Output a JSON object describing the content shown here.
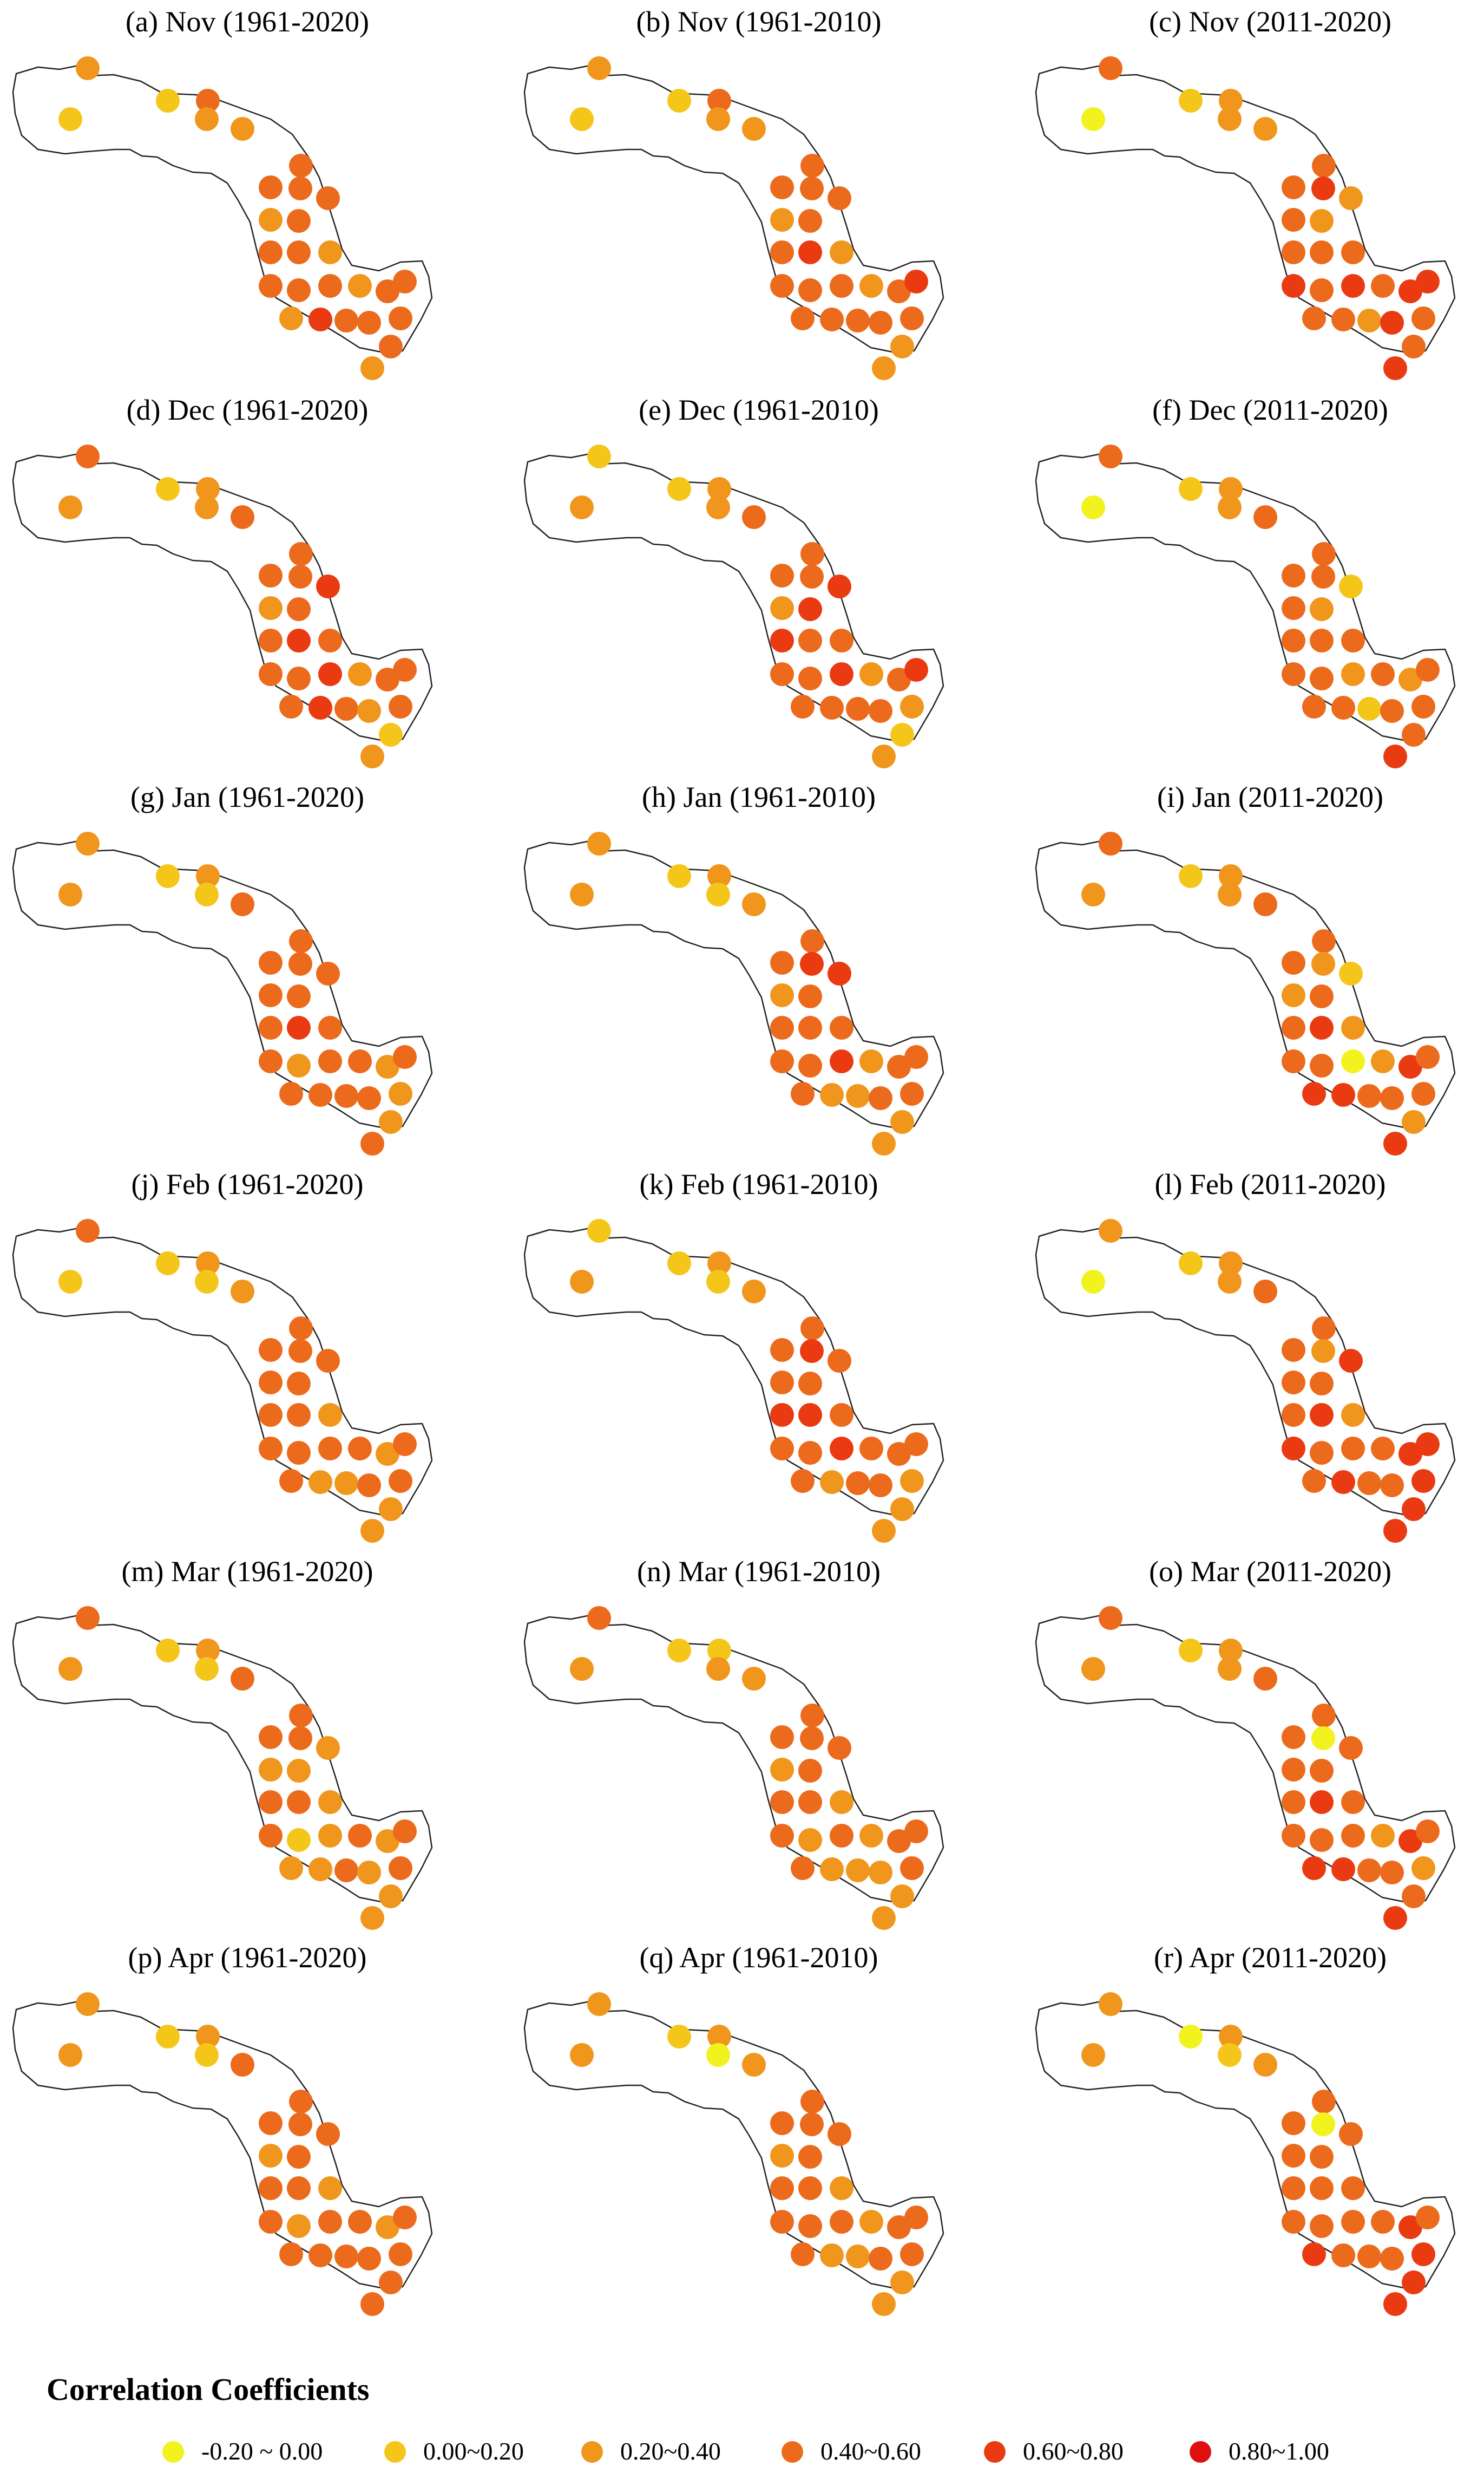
{
  "panels": [
    {
      "title": "(a) Nov (1961-2020)",
      "classes": [
        1,
        2,
        1,
        3,
        2,
        2,
        3,
        3,
        3,
        3,
        2,
        3,
        3,
        3,
        2,
        3,
        3,
        3,
        2,
        3,
        3,
        2,
        4,
        3,
        3,
        3,
        3,
        2
      ]
    },
    {
      "title": "(b) Nov (1961-2010)",
      "classes": [
        1,
        2,
        1,
        3,
        2,
        2,
        3,
        3,
        3,
        3,
        2,
        3,
        4,
        3,
        2,
        3,
        3,
        3,
        2,
        3,
        4,
        3,
        3,
        3,
        3,
        3,
        2,
        2
      ]
    },
    {
      "title": "(c) Nov (2011-2020)",
      "classes": [
        0,
        3,
        1,
        2,
        2,
        2,
        3,
        3,
        4,
        2,
        3,
        2,
        3,
        3,
        3,
        4,
        3,
        4,
        3,
        4,
        4,
        3,
        3,
        2,
        3,
        4,
        3,
        4
      ]
    },
    {
      "title": "(d) Dec (1961-2020)",
      "classes": [
        2,
        3,
        1,
        2,
        2,
        3,
        3,
        3,
        3,
        4,
        2,
        3,
        4,
        3,
        3,
        4,
        3,
        3,
        2,
        3,
        3,
        3,
        4,
        3,
        3,
        2,
        1,
        2
      ]
    },
    {
      "title": "(e) Dec (1961-2010)",
      "classes": [
        2,
        1,
        1,
        2,
        2,
        3,
        3,
        3,
        3,
        4,
        2,
        4,
        3,
        4,
        3,
        4,
        3,
        3,
        2,
        3,
        4,
        3,
        3,
        3,
        2,
        3,
        1,
        2
      ]
    },
    {
      "title": "(f) Dec (2011-2020)",
      "classes": [
        0,
        3,
        1,
        2,
        2,
        3,
        3,
        3,
        3,
        1,
        3,
        2,
        3,
        3,
        3,
        2,
        3,
        3,
        3,
        2,
        3,
        3,
        3,
        1,
        3,
        3,
        3,
        4
      ]
    },
    {
      "title": "(g) Jan (1961-2020)",
      "classes": [
        2,
        2,
        1,
        2,
        1,
        3,
        3,
        3,
        3,
        3,
        3,
        3,
        4,
        3,
        3,
        3,
        2,
        3,
        3,
        2,
        3,
        3,
        3,
        3,
        2,
        3,
        2,
        3
      ]
    },
    {
      "title": "(h) Jan (1961-2010)",
      "classes": [
        2,
        2,
        1,
        2,
        1,
        2,
        3,
        3,
        4,
        4,
        2,
        3,
        3,
        3,
        3,
        4,
        3,
        3,
        2,
        3,
        3,
        3,
        2,
        2,
        3,
        3,
        2,
        2
      ]
    },
    {
      "title": "(i) Jan (2011-2020)",
      "classes": [
        2,
        3,
        1,
        2,
        2,
        3,
        3,
        3,
        2,
        1,
        2,
        3,
        4,
        3,
        2,
        0,
        3,
        3,
        2,
        4,
        3,
        4,
        4,
        3,
        3,
        3,
        2,
        4
      ]
    },
    {
      "title": "(j) Feb (1961-2020)",
      "classes": [
        1,
        3,
        1,
        2,
        1,
        2,
        3,
        3,
        3,
        3,
        3,
        3,
        3,
        3,
        2,
        3,
        3,
        3,
        3,
        2,
        3,
        3,
        2,
        2,
        3,
        3,
        2,
        2
      ]
    },
    {
      "title": "(k) Feb (1961-2010)",
      "classes": [
        2,
        1,
        1,
        2,
        1,
        2,
        3,
        3,
        4,
        3,
        3,
        3,
        4,
        4,
        3,
        4,
        3,
        3,
        3,
        3,
        3,
        3,
        2,
        3,
        2,
        3,
        2,
        2
      ]
    },
    {
      "title": "(l) Feb (2011-2020)",
      "classes": [
        0,
        2,
        1,
        2,
        2,
        3,
        3,
        3,
        2,
        4,
        3,
        3,
        4,
        3,
        2,
        3,
        3,
        4,
        3,
        4,
        4,
        3,
        4,
        3,
        4,
        3,
        4,
        4
      ]
    },
    {
      "title": "(m) Mar (1961-2020)",
      "classes": [
        2,
        3,
        1,
        2,
        1,
        3,
        3,
        3,
        3,
        2,
        2,
        2,
        3,
        3,
        2,
        2,
        1,
        3,
        3,
        2,
        3,
        2,
        2,
        3,
        3,
        2,
        2,
        2
      ]
    },
    {
      "title": "(n) Mar (1961-2010)",
      "classes": [
        2,
        3,
        1,
        1,
        2,
        2,
        3,
        3,
        3,
        3,
        2,
        3,
        3,
        3,
        2,
        3,
        2,
        3,
        2,
        3,
        3,
        3,
        2,
        2,
        3,
        2,
        2,
        2
      ]
    },
    {
      "title": "(o) Mar (2011-2020)",
      "classes": [
        2,
        3,
        1,
        2,
        2,
        3,
        3,
        3,
        0,
        3,
        3,
        3,
        4,
        3,
        3,
        3,
        3,
        3,
        2,
        4,
        3,
        4,
        4,
        3,
        2,
        3,
        3,
        4
      ]
    },
    {
      "title": "(p) Apr (1961-2020)",
      "classes": [
        2,
        2,
        1,
        2,
        1,
        3,
        3,
        3,
        3,
        3,
        2,
        3,
        3,
        3,
        2,
        3,
        2,
        3,
        3,
        2,
        3,
        3,
        3,
        3,
        3,
        3,
        3,
        3
      ]
    },
    {
      "title": "(q) Apr (1961-2010)",
      "classes": [
        2,
        2,
        1,
        2,
        0,
        2,
        3,
        3,
        3,
        3,
        2,
        3,
        3,
        3,
        2,
        3,
        3,
        3,
        2,
        3,
        3,
        3,
        2,
        2,
        3,
        3,
        2,
        2
      ]
    },
    {
      "title": "(r) Apr (2011-2020)",
      "classes": [
        2,
        2,
        0,
        2,
        1,
        2,
        3,
        3,
        0,
        3,
        3,
        3,
        3,
        3,
        3,
        3,
        3,
        3,
        3,
        4,
        3,
        4,
        3,
        3,
        4,
        3,
        4,
        4
      ]
    }
  ],
  "legend": {
    "title": "Correlation Coefficients",
    "items": [
      {
        "label": "-0.20 ~ 0.00",
        "color": "#f2f21f"
      },
      {
        "label": "0.00~0.20",
        "color": "#f5c61a"
      },
      {
        "label": "0.20~0.40",
        "color": "#f0961c"
      },
      {
        "label": "0.40~0.60",
        "color": "#ec6a1c"
      },
      {
        "label": "0.60~0.80",
        "color": "#ea3a12"
      },
      {
        "label": "0.80~1.00",
        "color": "#e01010"
      }
    ]
  }
}
